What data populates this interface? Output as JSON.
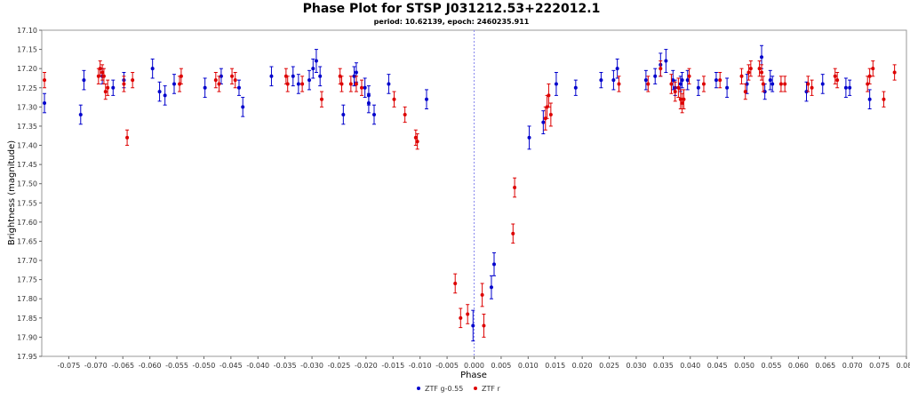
{
  "chart_data": {
    "type": "scatter",
    "title": "Phase Plot for STSP J031212.53+222012.1",
    "subtitle": "period: 10.62139, epoch: 2460235.911",
    "xlabel": "Phase",
    "ylabel": "Brightness (magnitude)",
    "xlim": [
      -0.08,
      0.08
    ],
    "ylim": [
      17.1,
      17.95
    ],
    "y_inverted": true,
    "x_ticks": [
      -0.075,
      -0.07,
      -0.065,
      -0.06,
      -0.055,
      -0.05,
      -0.045,
      -0.04,
      -0.035,
      -0.03,
      -0.025,
      -0.02,
      -0.015,
      -0.01,
      -0.005,
      0.0,
      0.005,
      0.01,
      0.015,
      0.02,
      0.025,
      0.03,
      0.035,
      0.04,
      0.045,
      0.05,
      0.055,
      0.06,
      0.065,
      0.07,
      0.075,
      0.08
    ],
    "x_tick_labels": [
      "-0.075",
      "-0.070",
      "-0.065",
      "-0.060",
      "-0.055",
      "-0.050",
      "-0.045",
      "-0.040",
      "-0.035",
      "-0.030",
      "-0.025",
      "-0.020",
      "-0.015",
      "-0.010",
      "-0.005",
      "0.000",
      "0.005",
      "0.010",
      "0.015",
      "0.020",
      "0.025",
      "0.030",
      "0.035",
      "0.040",
      "0.045",
      "0.050",
      "0.055",
      "0.060",
      "0.065",
      "0.070",
      "0.075",
      "0.080"
    ],
    "y_ticks": [
      17.1,
      17.15,
      17.2,
      17.25,
      17.3,
      17.35,
      17.4,
      17.45,
      17.5,
      17.55,
      17.6,
      17.65,
      17.7,
      17.75,
      17.8,
      17.85,
      17.9,
      17.95
    ],
    "y_tick_labels": [
      "17.10",
      "17.15",
      "17.20",
      "17.25",
      "17.30",
      "17.35",
      "17.40",
      "17.45",
      "17.50",
      "17.55",
      "17.60",
      "17.65",
      "17.70",
      "17.75",
      "17.80",
      "17.85",
      "17.90",
      "17.95"
    ],
    "grid": false,
    "reference_line_x": 0.0,
    "legend_position": "bottom-center",
    "series": [
      {
        "name": "ZTF g-0.55",
        "color": "#0000cc",
        "points": [
          [
            -0.0795,
            17.29,
            0.025
          ],
          [
            -0.0728,
            17.32,
            0.025
          ],
          [
            -0.0722,
            17.23,
            0.025
          ],
          [
            -0.0688,
            17.22,
            0.02
          ],
          [
            -0.0668,
            17.25,
            0.02
          ],
          [
            -0.0648,
            17.23,
            0.02
          ],
          [
            -0.0595,
            17.2,
            0.025
          ],
          [
            -0.0582,
            17.26,
            0.025
          ],
          [
            -0.0572,
            17.27,
            0.025
          ],
          [
            -0.0555,
            17.24,
            0.025
          ],
          [
            -0.0498,
            17.25,
            0.025
          ],
          [
            -0.0468,
            17.22,
            0.02
          ],
          [
            -0.0428,
            17.3,
            0.025
          ],
          [
            -0.0435,
            17.25,
            0.02
          ],
          [
            -0.0375,
            17.22,
            0.025
          ],
          [
            -0.0335,
            17.22,
            0.025
          ],
          [
            -0.0325,
            17.24,
            0.025
          ],
          [
            -0.0305,
            17.23,
            0.025
          ],
          [
            -0.0298,
            17.2,
            0.025
          ],
          [
            -0.0292,
            17.18,
            0.03
          ],
          [
            -0.0285,
            17.22,
            0.025
          ],
          [
            -0.0242,
            17.32,
            0.025
          ],
          [
            -0.0222,
            17.22,
            0.025
          ],
          [
            -0.0218,
            17.21,
            0.025
          ],
          [
            -0.0202,
            17.25,
            0.025
          ],
          [
            -0.0195,
            17.27,
            0.025
          ],
          [
            -0.0185,
            17.32,
            0.025
          ],
          [
            -0.0195,
            17.29,
            0.025
          ],
          [
            -0.0158,
            17.24,
            0.025
          ],
          [
            -0.0088,
            17.28,
            0.025
          ],
          [
            -0.0002,
            17.87,
            0.04
          ],
          [
            0.0032,
            17.77,
            0.03
          ],
          [
            0.0037,
            17.71,
            0.03
          ],
          [
            0.0102,
            17.38,
            0.03
          ],
          [
            0.0128,
            17.34,
            0.03
          ],
          [
            0.0152,
            17.24,
            0.03
          ],
          [
            0.0188,
            17.25,
            0.02
          ],
          [
            0.0235,
            17.23,
            0.02
          ],
          [
            0.0258,
            17.23,
            0.025
          ],
          [
            0.0265,
            17.2,
            0.025
          ],
          [
            0.0318,
            17.23,
            0.025
          ],
          [
            0.0335,
            17.22,
            0.02
          ],
          [
            0.0345,
            17.19,
            0.03
          ],
          [
            0.0355,
            17.18,
            0.03
          ],
          [
            0.0368,
            17.23,
            0.025
          ],
          [
            0.0372,
            17.25,
            0.02
          ],
          [
            0.0382,
            17.24,
            0.02
          ],
          [
            0.0385,
            17.23,
            0.02
          ],
          [
            0.0395,
            17.23,
            0.025
          ],
          [
            0.0415,
            17.25,
            0.02
          ],
          [
            0.0448,
            17.23,
            0.02
          ],
          [
            0.0468,
            17.25,
            0.025
          ],
          [
            0.0505,
            17.24,
            0.025
          ],
          [
            0.0532,
            17.17,
            0.03
          ],
          [
            0.0538,
            17.26,
            0.02
          ],
          [
            0.0548,
            17.23,
            0.025
          ],
          [
            0.0552,
            17.24,
            0.02
          ],
          [
            0.0615,
            17.26,
            0.025
          ],
          [
            0.0645,
            17.24,
            0.025
          ],
          [
            0.0688,
            17.25,
            0.025
          ],
          [
            0.0695,
            17.25,
            0.02
          ],
          [
            0.0732,
            17.28,
            0.025
          ]
        ]
      },
      {
        "name": "ZTF r",
        "color": "#dd0000",
        "points": [
          [
            -0.0795,
            17.23,
            0.02
          ],
          [
            -0.0695,
            17.22,
            0.02
          ],
          [
            -0.0692,
            17.2,
            0.02
          ],
          [
            -0.0688,
            17.21,
            0.02
          ],
          [
            -0.0685,
            17.22,
            0.02
          ],
          [
            -0.0682,
            17.26,
            0.02
          ],
          [
            -0.0678,
            17.25,
            0.02
          ],
          [
            -0.0648,
            17.24,
            0.02
          ],
          [
            -0.0642,
            17.38,
            0.02
          ],
          [
            -0.0632,
            17.23,
            0.02
          ],
          [
            -0.0545,
            17.24,
            0.02
          ],
          [
            -0.0542,
            17.22,
            0.02
          ],
          [
            -0.0478,
            17.23,
            0.02
          ],
          [
            -0.0472,
            17.24,
            0.02
          ],
          [
            -0.0448,
            17.22,
            0.02
          ],
          [
            -0.0442,
            17.23,
            0.02
          ],
          [
            -0.0348,
            17.22,
            0.02
          ],
          [
            -0.0345,
            17.24,
            0.02
          ],
          [
            -0.0318,
            17.24,
            0.02
          ],
          [
            -0.0282,
            17.28,
            0.02
          ],
          [
            -0.0248,
            17.22,
            0.02
          ],
          [
            -0.0245,
            17.24,
            0.02
          ],
          [
            -0.0228,
            17.24,
            0.02
          ],
          [
            -0.0218,
            17.24,
            0.02
          ],
          [
            -0.0208,
            17.25,
            0.02
          ],
          [
            -0.0148,
            17.28,
            0.02
          ],
          [
            -0.0128,
            17.32,
            0.02
          ],
          [
            -0.0108,
            17.38,
            0.02
          ],
          [
            -0.0105,
            17.39,
            0.02
          ],
          [
            -0.0035,
            17.76,
            0.025
          ],
          [
            -0.0025,
            17.85,
            0.025
          ],
          [
            -0.0012,
            17.84,
            0.025
          ],
          [
            0.0015,
            17.79,
            0.03
          ],
          [
            0.0018,
            17.87,
            0.03
          ],
          [
            0.0075,
            17.51,
            0.025
          ],
          [
            0.0072,
            17.63,
            0.025
          ],
          [
            0.0132,
            17.33,
            0.03
          ],
          [
            0.0135,
            17.3,
            0.03
          ],
          [
            0.0138,
            17.27,
            0.03
          ],
          [
            0.0142,
            17.32,
            0.03
          ],
          [
            0.0268,
            17.24,
            0.02
          ],
          [
            0.0322,
            17.24,
            0.02
          ],
          [
            0.0345,
            17.2,
            0.02
          ],
          [
            0.0365,
            17.24,
            0.025
          ],
          [
            0.0372,
            17.26,
            0.025
          ],
          [
            0.0378,
            17.25,
            0.025
          ],
          [
            0.0382,
            17.28,
            0.025
          ],
          [
            0.0385,
            17.29,
            0.025
          ],
          [
            0.0388,
            17.28,
            0.025
          ],
          [
            0.0398,
            17.22,
            0.02
          ],
          [
            0.0425,
            17.24,
            0.02
          ],
          [
            0.0455,
            17.23,
            0.02
          ],
          [
            0.0495,
            17.22,
            0.02
          ],
          [
            0.0502,
            17.26,
            0.02
          ],
          [
            0.0508,
            17.21,
            0.02
          ],
          [
            0.0512,
            17.2,
            0.02
          ],
          [
            0.0528,
            17.2,
            0.02
          ],
          [
            0.0532,
            17.21,
            0.02
          ],
          [
            0.0535,
            17.24,
            0.02
          ],
          [
            0.0568,
            17.24,
            0.02
          ],
          [
            0.0575,
            17.24,
            0.02
          ],
          [
            0.0618,
            17.24,
            0.02
          ],
          [
            0.0625,
            17.25,
            0.02
          ],
          [
            0.0668,
            17.22,
            0.02
          ],
          [
            0.0672,
            17.23,
            0.02
          ],
          [
            0.0728,
            17.24,
            0.02
          ],
          [
            0.0732,
            17.22,
            0.02
          ],
          [
            0.0738,
            17.2,
            0.02
          ],
          [
            0.0758,
            17.28,
            0.02
          ],
          [
            0.0778,
            17.21,
            0.02
          ]
        ]
      }
    ]
  }
}
